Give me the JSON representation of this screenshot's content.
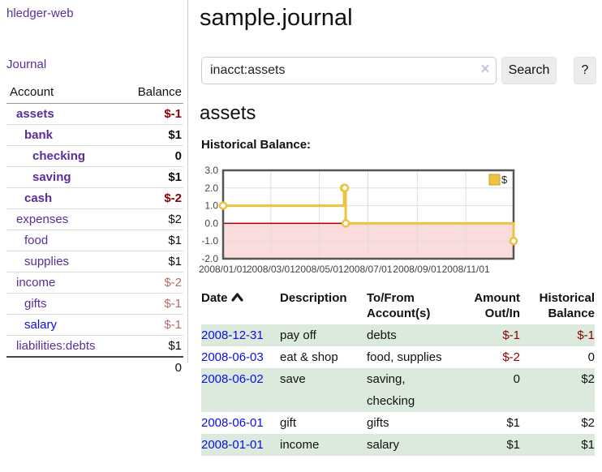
{
  "sidebar": {
    "brand": "hledger-web",
    "nav": [
      {
        "label": "Journal"
      }
    ],
    "accounts_table": {
      "headers": {
        "account": "Account",
        "balance": "Balance"
      },
      "rows": [
        {
          "name": "assets",
          "indent": 0,
          "bold": true,
          "name_color": "purple",
          "balance": "$-1",
          "balance_style": "neg-strong"
        },
        {
          "name": "bank",
          "indent": 1,
          "bold": true,
          "name_color": "purple",
          "balance": "$1",
          "balance_style": "normal"
        },
        {
          "name": "checking",
          "indent": 2,
          "bold": true,
          "name_color": "purple",
          "balance": "0",
          "balance_style": "normal"
        },
        {
          "name": "saving",
          "indent": 2,
          "bold": true,
          "name_color": "purple",
          "balance": "$1",
          "balance_style": "normal"
        },
        {
          "name": "cash",
          "indent": 1,
          "bold": true,
          "name_color": "purple",
          "balance": "$-2",
          "balance_style": "neg-strong"
        },
        {
          "name": "expenses",
          "indent": 0,
          "bold": false,
          "name_color": "purple",
          "balance": "$2",
          "balance_style": "normal"
        },
        {
          "name": "food",
          "indent": 1,
          "bold": false,
          "name_color": "purple",
          "balance": "$1",
          "balance_style": "normal"
        },
        {
          "name": "supplies",
          "indent": 1,
          "bold": false,
          "name_color": "purple",
          "balance": "$1",
          "balance_style": "normal"
        },
        {
          "name": "income",
          "indent": 0,
          "bold": false,
          "name_color": "purple",
          "balance": "$-2",
          "balance_style": "neg-soft"
        },
        {
          "name": "gifts",
          "indent": 1,
          "bold": false,
          "name_color": "purple",
          "balance": "$-1",
          "balance_style": "neg-soft"
        },
        {
          "name": "salary",
          "indent": 1,
          "bold": false,
          "name_color": "blue",
          "balance": "$-1",
          "balance_style": "neg-soft"
        },
        {
          "name": "liabilities:debts",
          "indent": 0,
          "bold": false,
          "name_color": "purple",
          "balance": "$1",
          "balance_style": "normal"
        }
      ],
      "total": "0"
    }
  },
  "header": {
    "title": "sample.journal"
  },
  "search": {
    "value": "inacct:assets",
    "clear_icon": "×",
    "button_label": "Search",
    "help_label": "?"
  },
  "account_page": {
    "heading": "assets",
    "chart_label": "Historical Balance:"
  },
  "chart_data": {
    "type": "line",
    "title": "Historical Balance:",
    "steps": true,
    "series": [
      {
        "name": "$",
        "color": "#edc240",
        "points": [
          {
            "date": "2008-01-01",
            "value": 1
          },
          {
            "date": "2008-06-01",
            "value": 2
          },
          {
            "date": "2008-06-02",
            "value": 2
          },
          {
            "date": "2008-06-03",
            "value": 0
          },
          {
            "date": "2008-12-31",
            "value": -1
          }
        ]
      }
    ],
    "x_ticks": [
      "2008/01/01",
      "2008/03/01",
      "2008/05/01",
      "2008/07/01",
      "2008/09/01",
      "2008/11/01"
    ],
    "x_range": [
      "2008-01-01",
      "2008-12-31"
    ],
    "y_ticks": [
      "3.0",
      "2.0",
      "1.0",
      "0.0",
      "-1.0",
      "-2.0"
    ],
    "ylim": [
      -2,
      3
    ],
    "grid": true,
    "legend": {
      "label": "$",
      "position": "top-right"
    },
    "colors": {
      "line": "#edc240",
      "point_fill": "#ffffff",
      "negative_region": "#fbdcdc",
      "zero_line": "#a00000",
      "gridline": "#dddddd",
      "plot_border": "#555555",
      "tick_text": "#444444"
    }
  },
  "register_table": {
    "sort": {
      "column": "Date",
      "direction": "ascending"
    },
    "headers": [
      {
        "lines": [
          "Date"
        ],
        "align": "left"
      },
      {
        "lines": [
          "Description"
        ],
        "align": "left"
      },
      {
        "lines": [
          "To/From",
          "Account(s)"
        ],
        "align": "left"
      },
      {
        "lines": [
          "Amount",
          "Out/In"
        ],
        "align": "right"
      },
      {
        "lines": [
          "Historical",
          "Balance"
        ],
        "align": "right"
      }
    ],
    "rows": [
      {
        "date": "2008-12-31",
        "description": "pay off",
        "accounts": "debts",
        "amount": "$-1",
        "amount_negative": true,
        "balance": "$-1",
        "balance_negative": true
      },
      {
        "date": "2008-06-03",
        "description": "eat & shop",
        "accounts": "food, supplies",
        "amount": "$-2",
        "amount_negative": true,
        "balance": "0",
        "balance_negative": false
      },
      {
        "date": "2008-06-02",
        "description": "save",
        "accounts": "saving, checking",
        "amount": "0",
        "amount_negative": false,
        "balance": "$2",
        "balance_negative": false
      },
      {
        "date": "2008-06-01",
        "description": "gift",
        "accounts": "gifts",
        "amount": "$1",
        "amount_negative": false,
        "balance": "$2",
        "balance_negative": false
      },
      {
        "date": "2008-01-01",
        "description": "income",
        "accounts": "salary",
        "amount": "$1",
        "amount_negative": false,
        "balance": "$1",
        "balance_negative": false
      }
    ]
  },
  "colors": {
    "accent_purple": "#5b2d9c",
    "link_blue": "#0d0de0",
    "negative_strong": "#8b0000",
    "negative_soft": "#b46b6b",
    "row_green": "#dbeadc"
  }
}
